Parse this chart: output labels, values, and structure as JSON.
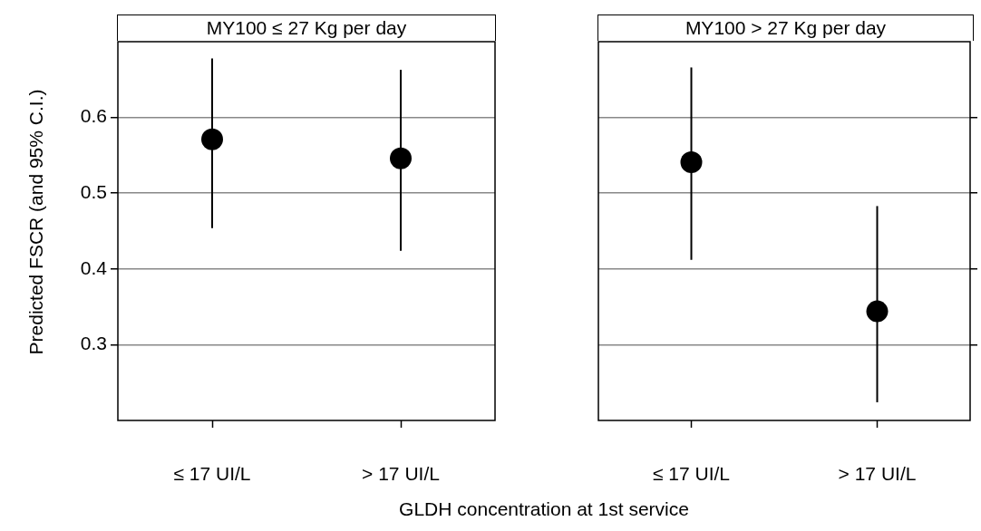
{
  "chart_data": [
    {
      "type": "scatter",
      "title": "MY100 ≤ 27 Kg per day",
      "xlabel": "GLDH concentration at 1st service",
      "ylabel": "Predicted FSCR (and 95% C.I.)",
      "categories": [
        "≤ 17 UI/L",
        "> 17 UI/L"
      ],
      "values": [
        0.571,
        0.546
      ],
      "errors": [
        [
          0.454,
          0.678
        ],
        [
          0.424,
          0.663
        ]
      ],
      "color": "#000000",
      "marker": "circle",
      "ylim": [
        0.2,
        0.7
      ],
      "yticks": [
        0.3,
        0.4,
        0.5,
        0.6
      ],
      "grid": "y"
    },
    {
      "type": "scatter",
      "title": "MY100 > 27 Kg per day",
      "categories": [
        "≤ 17 UI/L",
        "> 17 UI/L"
      ],
      "values": [
        0.541,
        0.344
      ],
      "errors": [
        [
          0.412,
          0.666
        ],
        [
          0.224,
          0.483
        ]
      ],
      "color": "#000000",
      "marker": "circle",
      "ylim": [
        0.2,
        0.7
      ],
      "yticks": [
        0.3,
        0.4,
        0.5,
        0.6
      ],
      "grid": "y",
      "tick_labels": "x"
    }
  ]
}
